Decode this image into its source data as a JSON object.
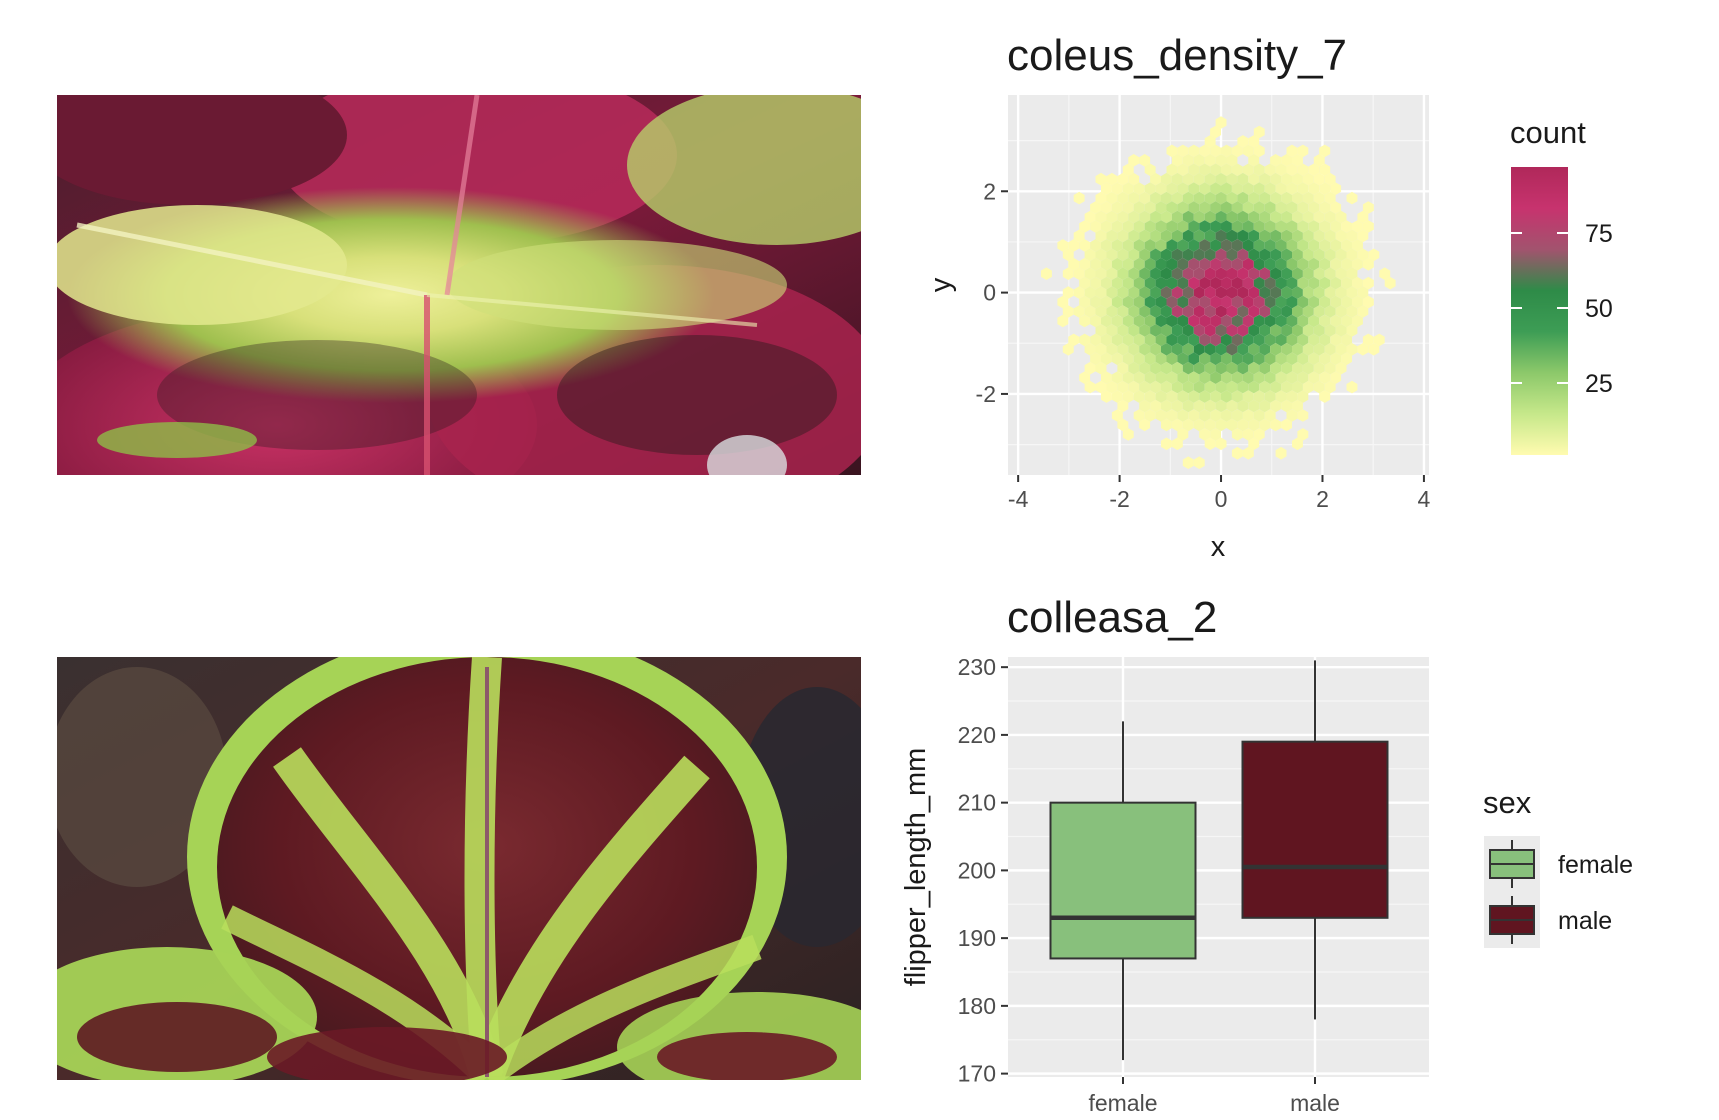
{
  "photos": [
    {
      "name": "coleus-leaf-pink-yellow",
      "palette": {
        "base": "#7a1a3a",
        "mid": "#c2285f",
        "light": "#e6eb8a",
        "edge": "#8fbd47",
        "dark": "#2b1a1e"
      }
    },
    {
      "name": "coleus-leaf-maroon-green",
      "palette": {
        "base": "#5e1a22",
        "mid": "#7a2a2e",
        "light": "#b9de5c",
        "edge": "#9ccb45",
        "dark": "#3a2a2a"
      }
    }
  ],
  "chart_data": [
    {
      "type": "heatmap",
      "subtype": "hexbin",
      "title": "coleus_density_7",
      "xlabel": "x",
      "ylabel": "y",
      "xlim": [
        -4.2,
        4.1
      ],
      "ylim": [
        -3.6,
        3.9
      ],
      "x_ticks": [
        -4,
        -2,
        0,
        2,
        4
      ],
      "x_tick_labels": [
        "-4",
        "-2",
        "0",
        "2",
        "4"
      ],
      "y_ticks": [
        -2,
        0,
        2
      ],
      "y_tick_labels": [
        "-2",
        "0",
        "2"
      ],
      "grid": true,
      "distribution": "bivariate standard normal",
      "count_max": 97,
      "legend": {
        "title": "count",
        "breaks": [
          25,
          50,
          75
        ],
        "break_labels": [
          "25",
          "50",
          "75"
        ],
        "range": [
          1,
          97
        ],
        "colors": [
          "#fffbb0",
          "#c6e88a",
          "#8cc86a",
          "#3d9d55",
          "#2e8b48",
          "#a2536e",
          "#c7336e",
          "#b0285a"
        ],
        "position": "right"
      }
    },
    {
      "type": "box",
      "title": "colleasa_2",
      "xlabel": "",
      "ylabel": "flipper_length_mm",
      "ylim": [
        169.5,
        231.5
      ],
      "y_ticks": [
        170,
        180,
        190,
        200,
        210,
        220,
        230
      ],
      "y_tick_labels": [
        "170",
        "180",
        "190",
        "200",
        "210",
        "220",
        "230"
      ],
      "categories": [
        "female",
        "male"
      ],
      "grid": true,
      "boxes": [
        {
          "name": "female",
          "min": 172,
          "q1": 187,
          "median": 193,
          "q3": 210,
          "max": 222,
          "color": "#88c07c"
        },
        {
          "name": "male",
          "min": 178,
          "q1": 193,
          "median": 200.5,
          "q3": 219,
          "max": 231,
          "color": "#601520"
        }
      ],
      "legend": {
        "title": "sex",
        "entries": [
          "female",
          "male"
        ],
        "colors": [
          "#88c07c",
          "#601520"
        ],
        "position": "right"
      }
    }
  ]
}
